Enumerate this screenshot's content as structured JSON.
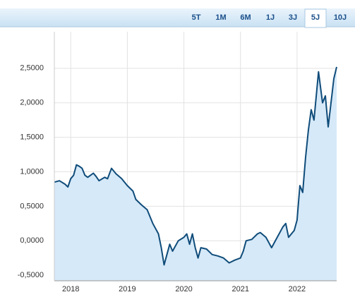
{
  "tabs": [
    "5T",
    "1M",
    "6M",
    "1J",
    "3J",
    "5J",
    "10J"
  ],
  "active_tab": 5,
  "chart_data": {
    "type": "area",
    "x": [
      2017.71,
      2017.8,
      2017.9,
      2017.95,
      2018.0,
      2018.05,
      2018.1,
      2018.15,
      2018.2,
      2018.25,
      2018.3,
      2018.4,
      2018.45,
      2018.5,
      2018.6,
      2018.65,
      2018.72,
      2018.8,
      2018.9,
      2019.0,
      2019.1,
      2019.15,
      2019.25,
      2019.35,
      2019.45,
      2019.55,
      2019.6,
      2019.65,
      2019.7,
      2019.75,
      2019.8,
      2019.9,
      2020.0,
      2020.05,
      2020.1,
      2020.15,
      2020.2,
      2020.25,
      2020.3,
      2020.4,
      2020.5,
      2020.6,
      2020.7,
      2020.8,
      2020.9,
      2021.0,
      2021.05,
      2021.1,
      2021.2,
      2021.3,
      2021.35,
      2021.45,
      2021.55,
      2021.65,
      2021.75,
      2021.8,
      2021.85,
      2021.95,
      2022.0,
      2022.05,
      2022.1,
      2022.15,
      2022.2,
      2022.25,
      2022.3,
      2022.38,
      2022.45,
      2022.5,
      2022.55,
      2022.6,
      2022.65,
      2022.7
    ],
    "series": [
      {
        "color": "#0f4c7a",
        "fill": "#d6e9f8",
        "values": [
          0.85,
          0.87,
          0.82,
          0.78,
          0.9,
          0.95,
          1.1,
          1.08,
          1.05,
          0.95,
          0.92,
          0.98,
          0.93,
          0.87,
          0.92,
          0.9,
          1.05,
          0.97,
          0.9,
          0.8,
          0.72,
          0.6,
          0.52,
          0.45,
          0.25,
          0.1,
          -0.1,
          -0.35,
          -0.2,
          -0.05,
          -0.15,
          0.0,
          0.05,
          0.1,
          -0.05,
          0.1,
          -0.1,
          -0.25,
          -0.1,
          -0.12,
          -0.2,
          -0.22,
          -0.25,
          -0.32,
          -0.28,
          -0.25,
          -0.15,
          0.0,
          0.02,
          0.1,
          0.12,
          0.05,
          -0.1,
          0.05,
          0.2,
          0.25,
          0.05,
          0.15,
          0.3,
          0.8,
          0.7,
          1.2,
          1.6,
          1.9,
          1.75,
          2.45,
          2.0,
          2.1,
          1.65,
          2.0,
          2.35,
          2.52
        ]
      }
    ],
    "xlim": [
      2017.71,
      2022.7
    ],
    "xticks": [
      2018,
      2019,
      2020,
      2021,
      2022
    ],
    "ylim": [
      -0.58,
      3.03
    ],
    "yticks": [
      {
        "value": -0.5,
        "label": "-0,5000"
      },
      {
        "value": 0,
        "label": "0,0000"
      },
      {
        "value": 0.5,
        "label": "0,5000"
      },
      {
        "value": 1,
        "label": "1,0000"
      },
      {
        "value": 1.5,
        "label": "1,5000"
      },
      {
        "value": 2,
        "label": "2,0000"
      },
      {
        "value": 2.5,
        "label": "2,5000"
      }
    ],
    "grid": true
  }
}
